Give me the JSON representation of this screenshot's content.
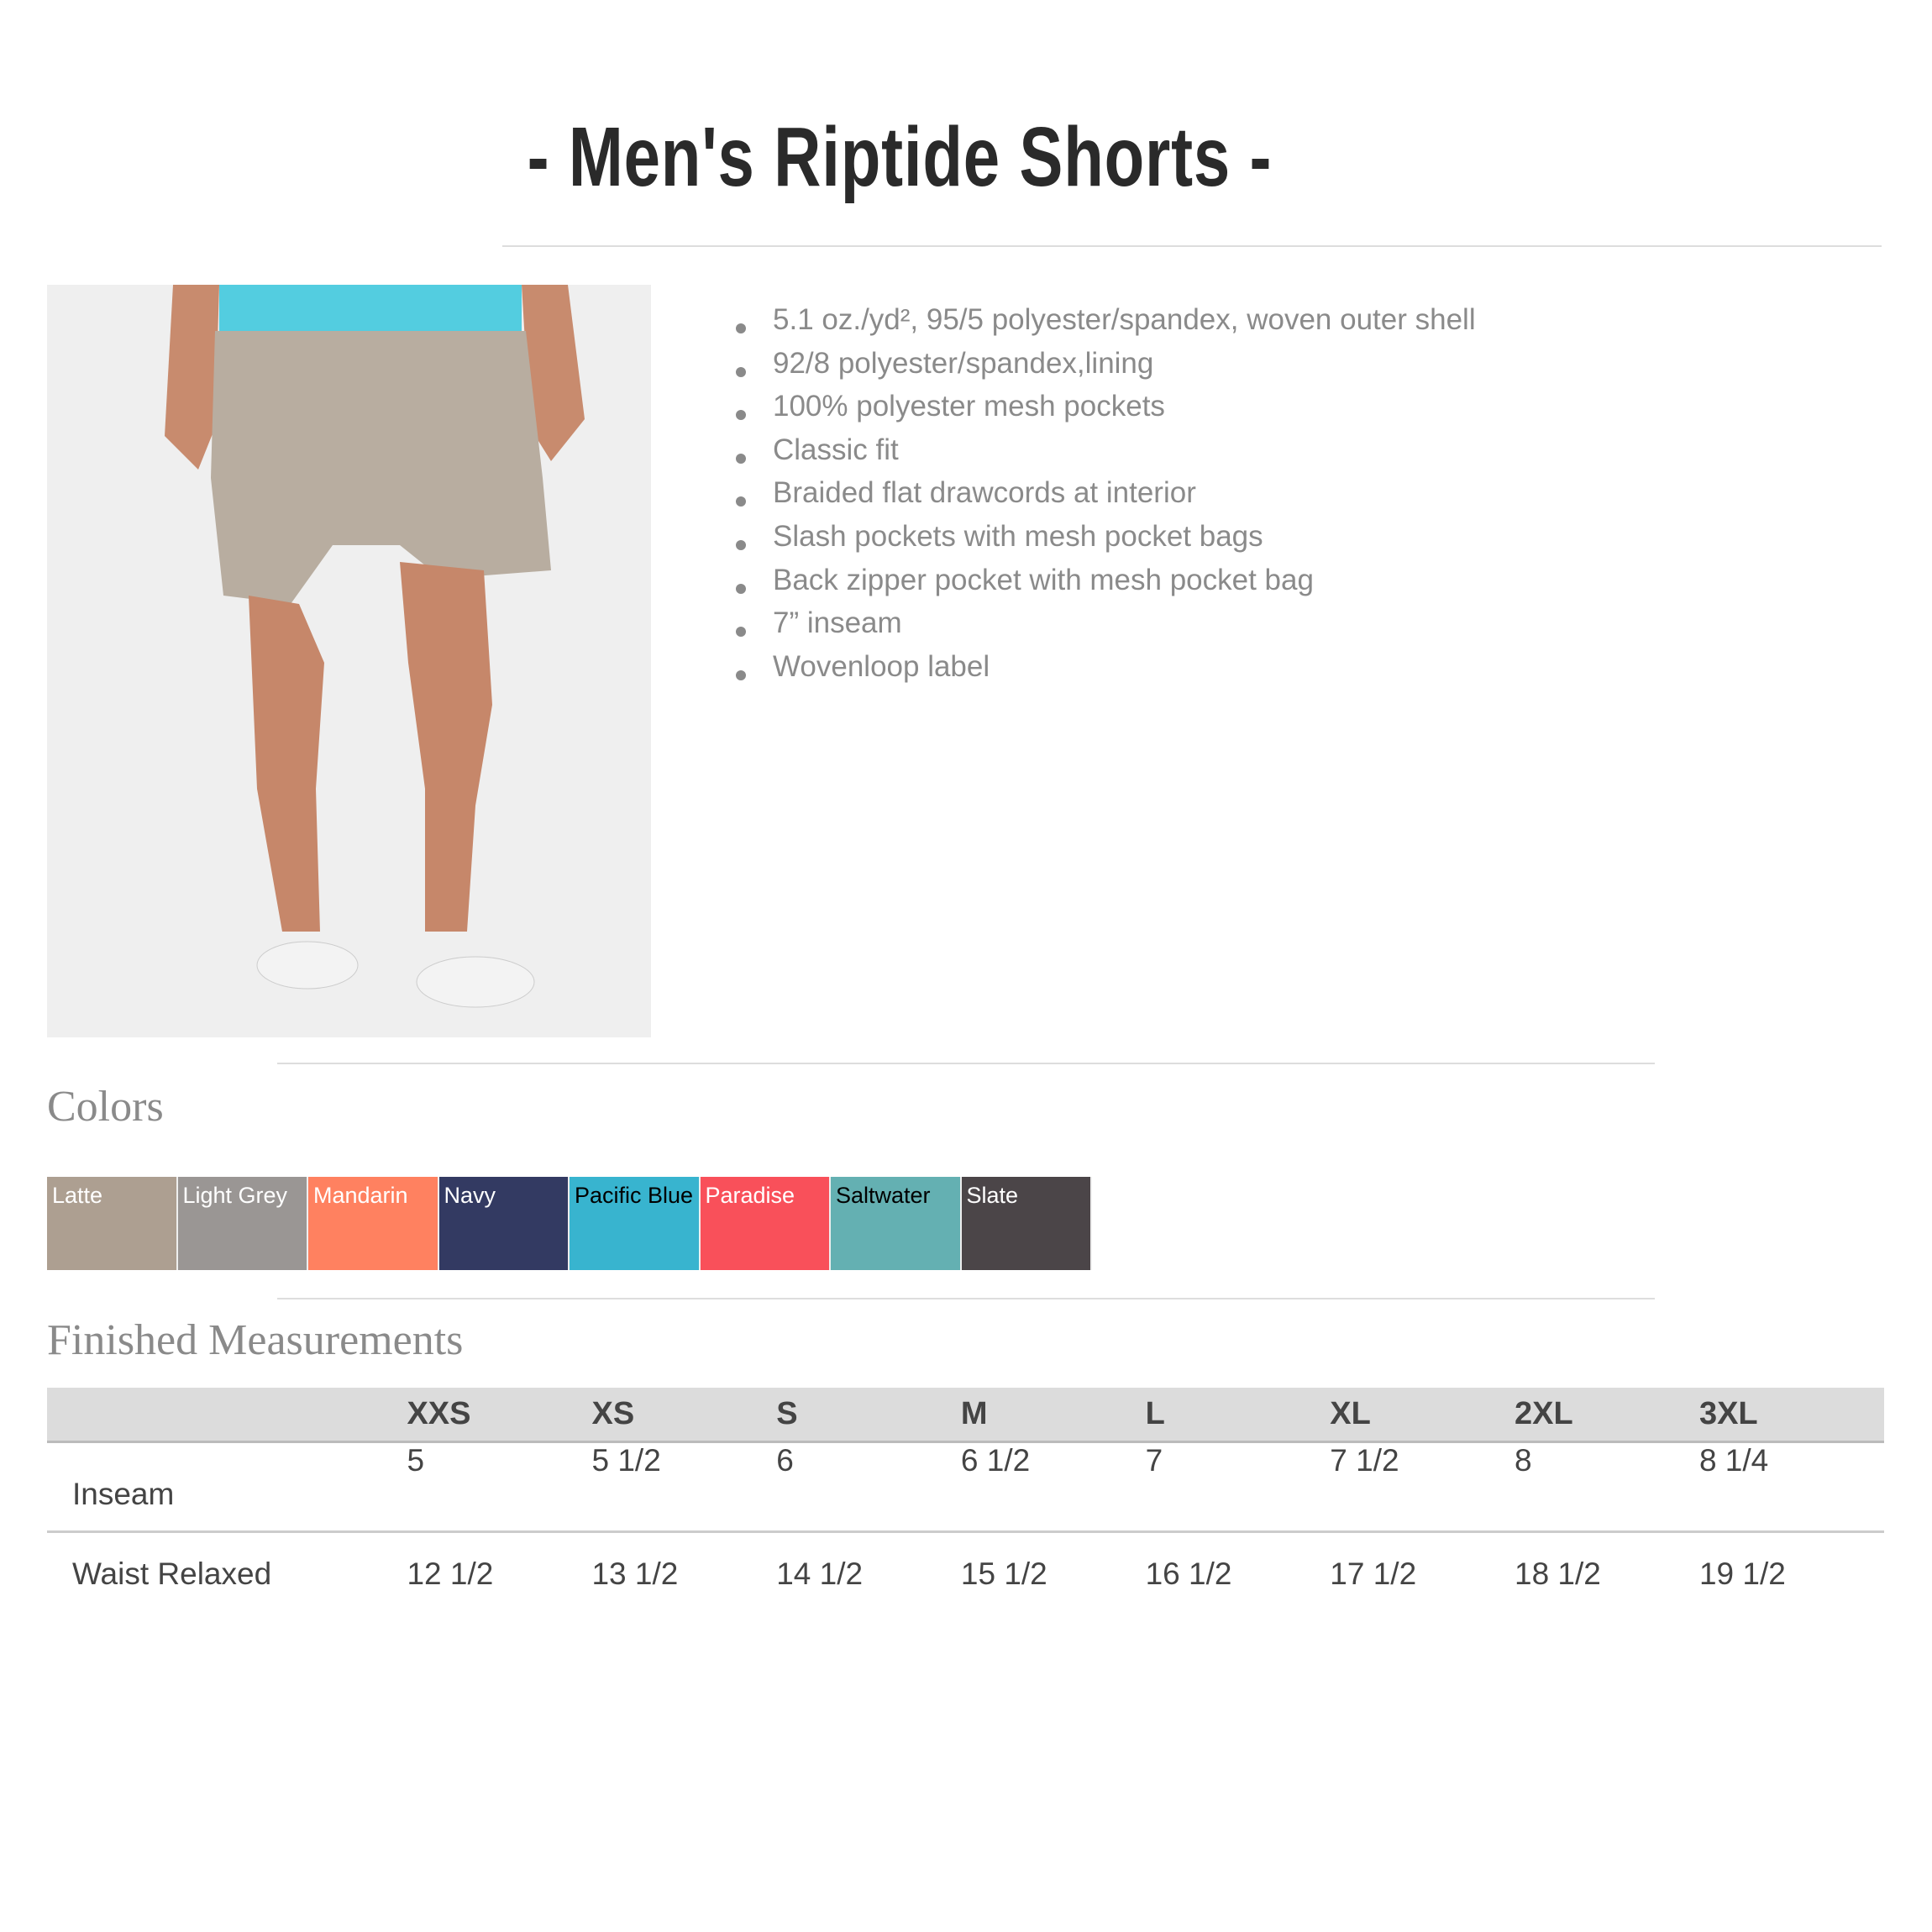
{
  "title": "- Men's Riptide Shorts -",
  "features": [
    "5.1 oz./yd², 95/5 polyester/spandex, woven outer shell",
    "92/8 polyester/spandex,lining",
    "100% polyester mesh pockets",
    "Classic fit",
    "Braided flat drawcords at interior",
    "Slash pockets with mesh pocket bags",
    "Back zipper pocket with mesh pocket bag",
    "7” inseam",
    "Wovenloop label"
  ],
  "colors_heading": "Colors",
  "colors": [
    {
      "name": "Latte",
      "hex": "#ad9f91",
      "text": "#ffffff"
    },
    {
      "name": "Light Grey",
      "hex": "#9a9694",
      "text": "#ffffff"
    },
    {
      "name": "Mandarin",
      "hex": "#ff8160",
      "text": "#ffffff"
    },
    {
      "name": "Navy",
      "hex": "#333a62",
      "text": "#ffffff"
    },
    {
      "name": "Pacific Blue",
      "hex": "#38b4cf",
      "text": "#000000"
    },
    {
      "name": "Paradise",
      "hex": "#f9505a",
      "text": "#ffffff"
    },
    {
      "name": "Saltwater",
      "hex": "#64b0b2",
      "text": "#000000"
    },
    {
      "name": "Slate",
      "hex": "#4b4548",
      "text": "#ffffff"
    }
  ],
  "measurements_heading": "Finished Measurements",
  "sizes": [
    "XXS",
    "XS",
    "S",
    "M",
    "L",
    "XL",
    "2XL",
    "3XL"
  ],
  "rows": [
    {
      "label": "Inseam",
      "values": [
        "5",
        "5 1/2",
        "6",
        "6 1/2",
        "7",
        "7 1/2",
        "8",
        "8 1/4"
      ]
    },
    {
      "label": "Waist Relaxed",
      "values": [
        "12 1/2",
        "13 1/2",
        "14 1/2",
        "15 1/2",
        "16 1/2",
        "17 1/2",
        "18 1/2",
        "19 1/2"
      ]
    }
  ]
}
